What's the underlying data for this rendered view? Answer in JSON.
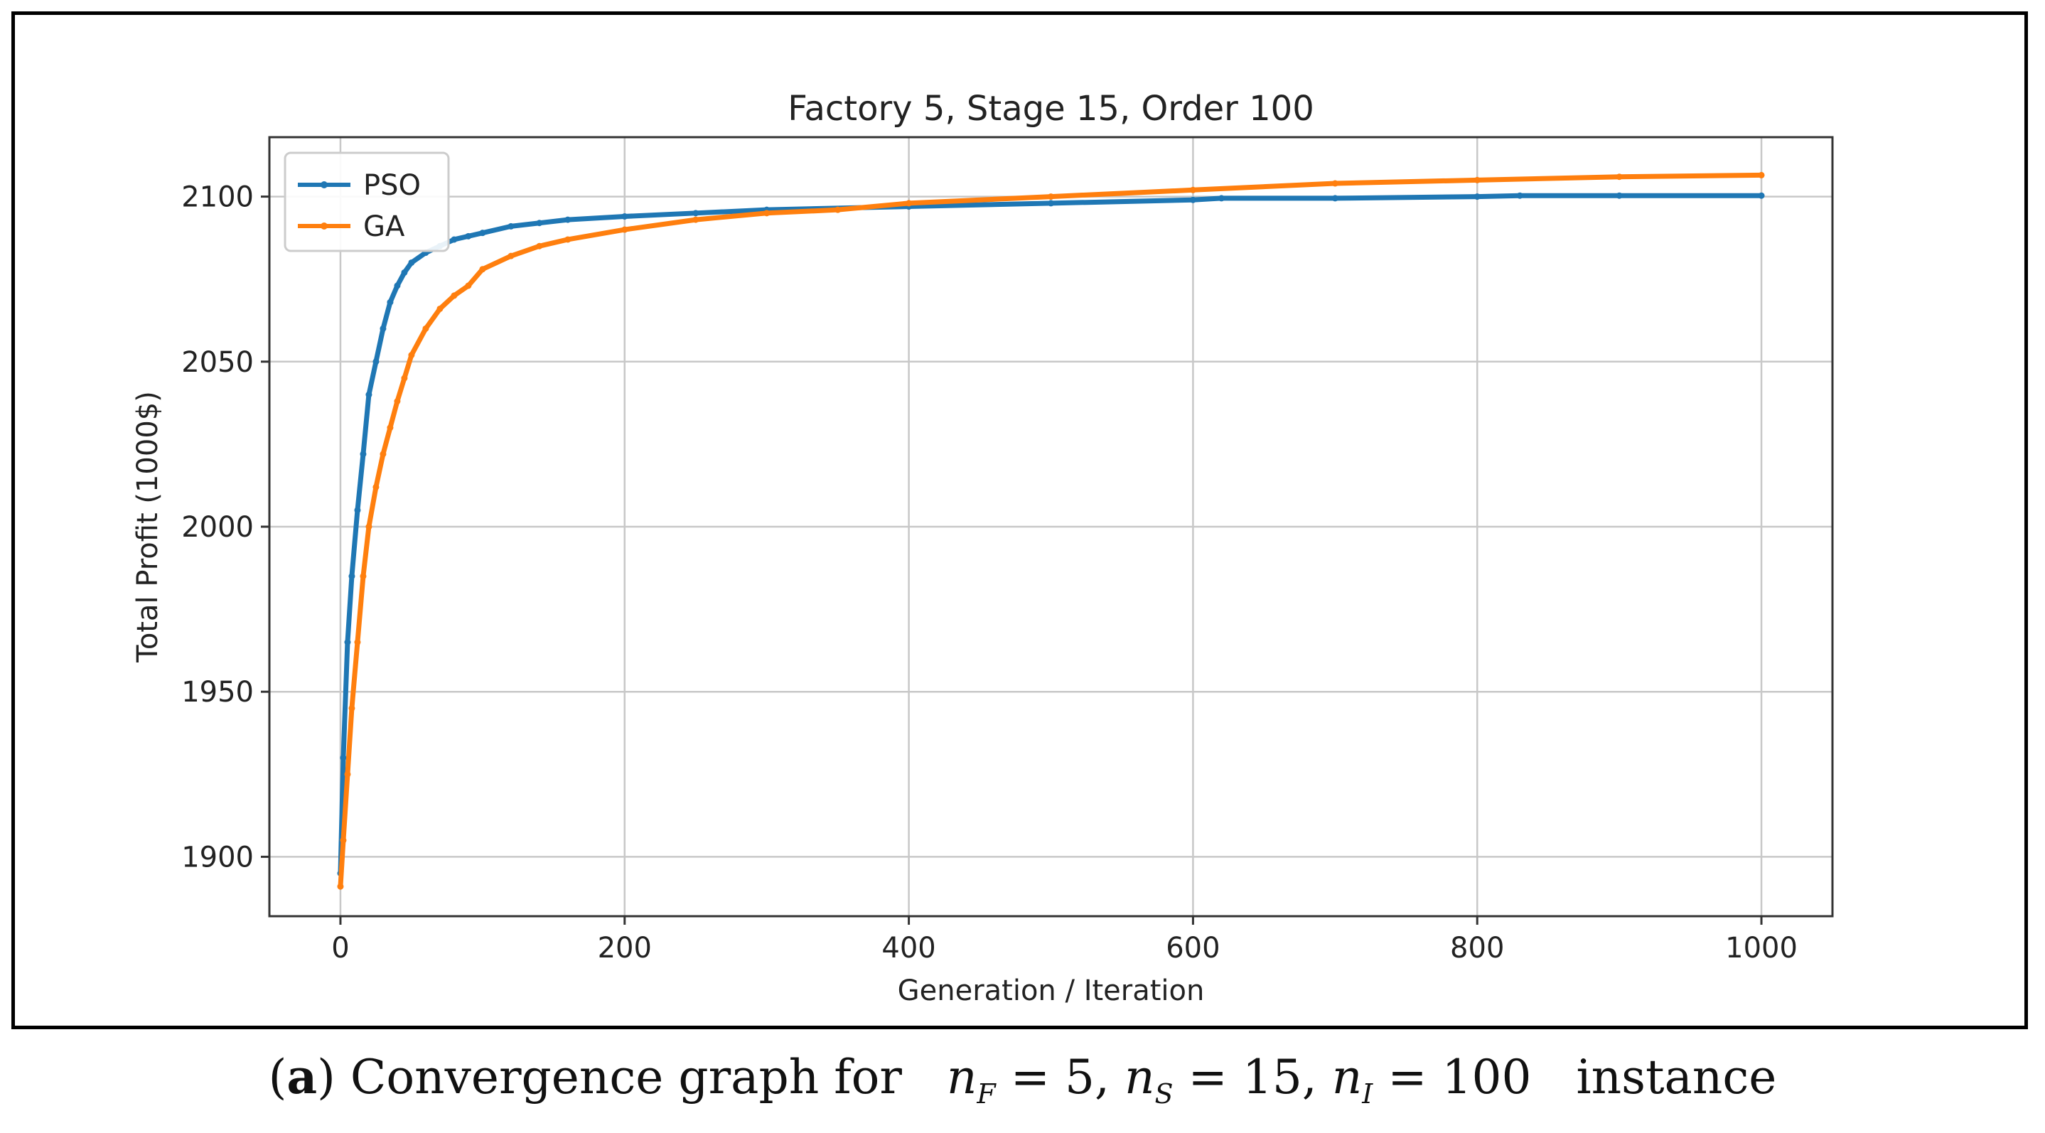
{
  "chart_data": {
    "type": "line",
    "title": "Factory 5, Stage 15, Order 100",
    "xlabel": "Generation / Iteration",
    "ylabel": "Total Profit     (1000$)",
    "xlim": [
      -50,
      1050
    ],
    "ylim": [
      1882,
      2118
    ],
    "xticks": [
      0,
      200,
      400,
      600,
      800,
      1000
    ],
    "yticks": [
      1900,
      1950,
      2000,
      2050,
      2100
    ],
    "grid": true,
    "legend_position": "top-left",
    "series": [
      {
        "name": "PSO",
        "color": "#1f77b4",
        "x": [
          0,
          2,
          5,
          8,
          12,
          16,
          20,
          25,
          30,
          35,
          40,
          45,
          50,
          60,
          70,
          80,
          90,
          100,
          120,
          140,
          160,
          200,
          250,
          300,
          400,
          500,
          600,
          620,
          700,
          800,
          830,
          900,
          1000
        ],
        "y": [
          1895,
          1930,
          1965,
          1985,
          2005,
          2022,
          2040,
          2050,
          2060,
          2068,
          2073,
          2077,
          2080,
          2083,
          2085,
          2087,
          2088,
          2089,
          2091,
          2092,
          2093,
          2094,
          2095,
          2096,
          2097,
          2098,
          2099,
          2099.5,
          2099.5,
          2100,
          2100.3,
          2100.3,
          2100.3
        ]
      },
      {
        "name": "GA",
        "color": "#ff7f0e",
        "x": [
          0,
          2,
          5,
          8,
          12,
          16,
          20,
          25,
          30,
          35,
          40,
          45,
          50,
          60,
          70,
          80,
          90,
          100,
          120,
          140,
          160,
          200,
          250,
          300,
          350,
          400,
          500,
          600,
          700,
          800,
          900,
          1000
        ],
        "y": [
          1891,
          1905,
          1925,
          1945,
          1965,
          1985,
          2000,
          2012,
          2022,
          2030,
          2038,
          2045,
          2052,
          2060,
          2066,
          2070,
          2073,
          2078,
          2082,
          2085,
          2087,
          2090,
          2093,
          2095,
          2096,
          2098,
          2100,
          2102,
          2104,
          2105,
          2106,
          2106.5
        ]
      }
    ]
  },
  "caption": {
    "label": "a",
    "text": "Convergence graph for",
    "math_nF": "n",
    "sub_F": "F",
    "eq1": " = 5, ",
    "math_nS": "n",
    "sub_S": "S",
    "eq2": " = 15, ",
    "math_nI": "n",
    "sub_I": "I",
    "eq3": " = 100",
    "suffix": "instance"
  }
}
